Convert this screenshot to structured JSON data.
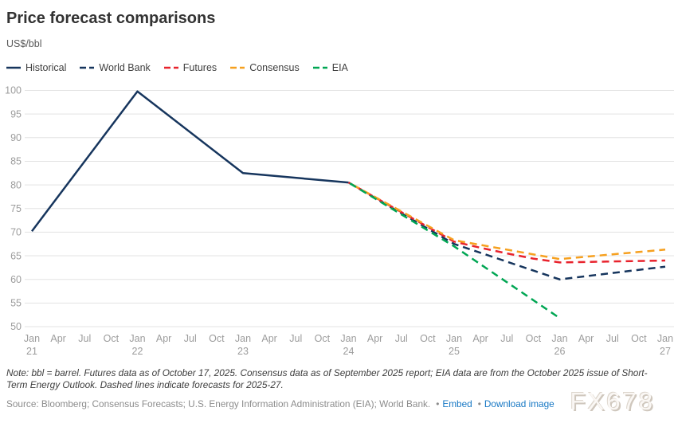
{
  "header": {
    "title": "Price forecast comparisons",
    "subtitle": "US$/bbl"
  },
  "colors": {
    "navy": "#16355d",
    "red": "#e8232d",
    "orange": "#f6a01f",
    "green": "#00a653",
    "grid": "#e3e3e3",
    "tick_label": "#9c9c9c"
  },
  "legend": [
    {
      "label": "Historical",
      "color": "#16355d",
      "style": "solid"
    },
    {
      "label": "World Bank",
      "color": "#16355d",
      "style": "dashed"
    },
    {
      "label": "Futures",
      "color": "#e8232d",
      "style": "dashed"
    },
    {
      "label": "Consensus",
      "color": "#f6a01f",
      "style": "dashed"
    },
    {
      "label": "EIA",
      "color": "#00a653",
      "style": "dashed"
    }
  ],
  "chart_data": {
    "type": "line",
    "title": "Price forecast comparisons",
    "ylabel": "US$/bbl",
    "xlabel": "",
    "ylim": [
      50,
      100
    ],
    "ytick_step": 5,
    "grid": "horizontal",
    "legend_position": "top",
    "x_ticks": [
      {
        "label": "Jan",
        "year": "21",
        "t": 2021
      },
      {
        "label": "Apr",
        "t": 2021.25
      },
      {
        "label": "Jul",
        "t": 2021.5
      },
      {
        "label": "Oct",
        "t": 2021.75
      },
      {
        "label": "Jan",
        "year": "22",
        "t": 2022
      },
      {
        "label": "Apr",
        "t": 2022.25
      },
      {
        "label": "Jul",
        "t": 2022.5
      },
      {
        "label": "Oct",
        "t": 2022.75
      },
      {
        "label": "Jan",
        "year": "23",
        "t": 2023
      },
      {
        "label": "Apr",
        "t": 2023.25
      },
      {
        "label": "Jul",
        "t": 2023.5
      },
      {
        "label": "Oct",
        "t": 2023.75
      },
      {
        "label": "Jan",
        "year": "24",
        "t": 2024
      },
      {
        "label": "Apr",
        "t": 2024.25
      },
      {
        "label": "Jul",
        "t": 2024.5
      },
      {
        "label": "Oct",
        "t": 2024.75
      },
      {
        "label": "Jan",
        "year": "25",
        "t": 2025
      },
      {
        "label": "Apr",
        "t": 2025.25
      },
      {
        "label": "Jul",
        "t": 2025.5
      },
      {
        "label": "Oct",
        "t": 2025.75
      },
      {
        "label": "Jan",
        "year": "26",
        "t": 2026
      },
      {
        "label": "Apr",
        "t": 2026.25
      },
      {
        "label": "Jul",
        "t": 2026.5
      },
      {
        "label": "Oct",
        "t": 2026.75
      },
      {
        "label": "Jan",
        "year": "27",
        "t": 2027
      }
    ],
    "series": [
      {
        "name": "Historical",
        "color": "#16355d",
        "style": "solid",
        "phase": 0,
        "points": [
          [
            2021,
            70.2
          ],
          [
            2022,
            99.8
          ],
          [
            2023,
            82.5
          ],
          [
            2024,
            80.5
          ]
        ]
      },
      {
        "name": "World Bank",
        "color": "#16355d",
        "style": "dashed",
        "phase": 0,
        "points": [
          [
            2024,
            80.5
          ],
          [
            2025,
            67.5
          ],
          [
            2026,
            60.0
          ],
          [
            2027,
            62.7
          ]
        ]
      },
      {
        "name": "Futures",
        "color": "#e8232d",
        "style": "dashed",
        "phase": 5,
        "points": [
          [
            2024,
            80.5
          ],
          [
            2025,
            68.0
          ],
          [
            2025.25,
            66.7
          ],
          [
            2025.5,
            65.5
          ],
          [
            2025.75,
            64.4
          ],
          [
            2026,
            63.6
          ],
          [
            2026.5,
            63.8
          ],
          [
            2027,
            64.0
          ]
        ]
      },
      {
        "name": "Consensus",
        "color": "#f6a01f",
        "style": "dashed",
        "phase": 9,
        "points": [
          [
            2024,
            80.5
          ],
          [
            2025,
            68.3
          ],
          [
            2026,
            64.3
          ],
          [
            2027,
            66.3
          ]
        ]
      },
      {
        "name": "EIA",
        "color": "#00a653",
        "style": "dashed",
        "phase": 13,
        "points": [
          [
            2024,
            80.5
          ],
          [
            2025,
            67.0
          ],
          [
            2026,
            51.8
          ]
        ]
      }
    ]
  },
  "footer": {
    "note_line1": "Note: bbl = barrel. Futures data as of October 17, 2025. Consensus data as of September 2025 report; EIA data are from the October 2025 issue of Short-",
    "note_line2": "Term Energy Outlook. Dashed lines indicate forecasts for 2025-27.",
    "source": "Source: Bloomberg; Consensus Forecasts; U.S. Energy Information Administration (EIA); World Bank.",
    "separator": "•",
    "links": [
      {
        "label": "Embed"
      },
      {
        "label": "Download image"
      }
    ]
  },
  "watermark": "FX678"
}
